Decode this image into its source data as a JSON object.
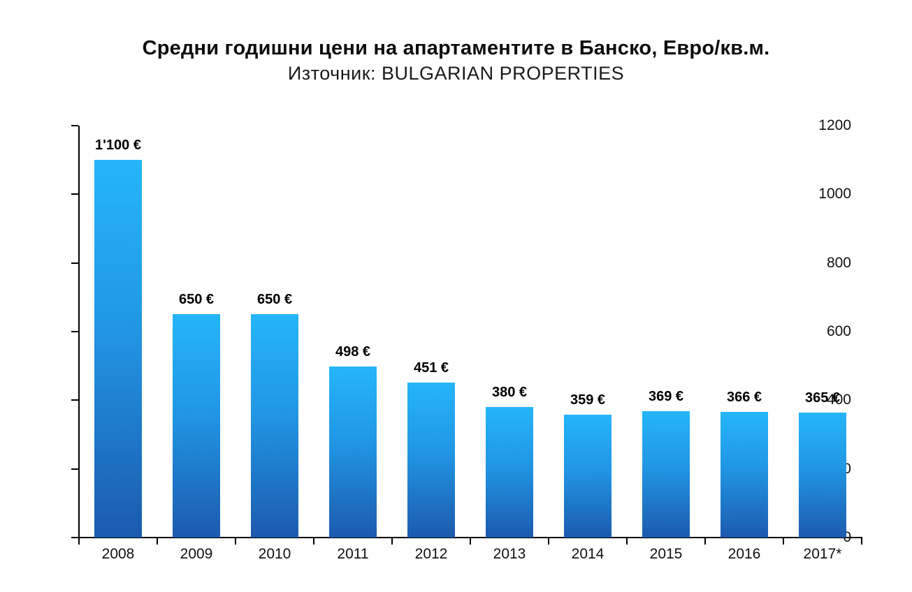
{
  "header": {
    "title": "Средни годишни цени на апартаментите в Банско, Евро/кв.м.",
    "subtitle": "Източник: BULGARIAN PROPERTIES"
  },
  "chart_data": {
    "type": "bar",
    "title": "Средни годишни цени на апартаментите в Банско, Евро/кв.м.",
    "subtitle": "Източник: BULGARIAN PROPERTIES",
    "categories": [
      "2008",
      "2009",
      "2010",
      "2011",
      "2012",
      "2013",
      "2014",
      "2015",
      "2016",
      "2017*"
    ],
    "values": [
      1100,
      650,
      650,
      498,
      451,
      380,
      359,
      369,
      366,
      365
    ],
    "value_labels": [
      "1'100 €",
      "650 €",
      "650 €",
      "498 €",
      "451 €",
      "380 €",
      "359 €",
      "369 €",
      "366 €",
      "365 €"
    ],
    "xlabel": "",
    "ylabel": "",
    "ylim": [
      0,
      1200
    ],
    "ytick_interval": 200,
    "yticks": [
      0,
      200,
      400,
      600,
      800,
      1000,
      1200
    ],
    "grid": false,
    "legend": null,
    "currency_suffix": "€",
    "colors": {
      "bar_gradient_top": "#25b5f8",
      "bar_gradient_mid": "#2196e3",
      "bar_gradient_bottom": "#1c5aae",
      "axis": "#000000",
      "text": "#111111",
      "value_label": "#000000",
      "background": "#ffffff"
    }
  }
}
